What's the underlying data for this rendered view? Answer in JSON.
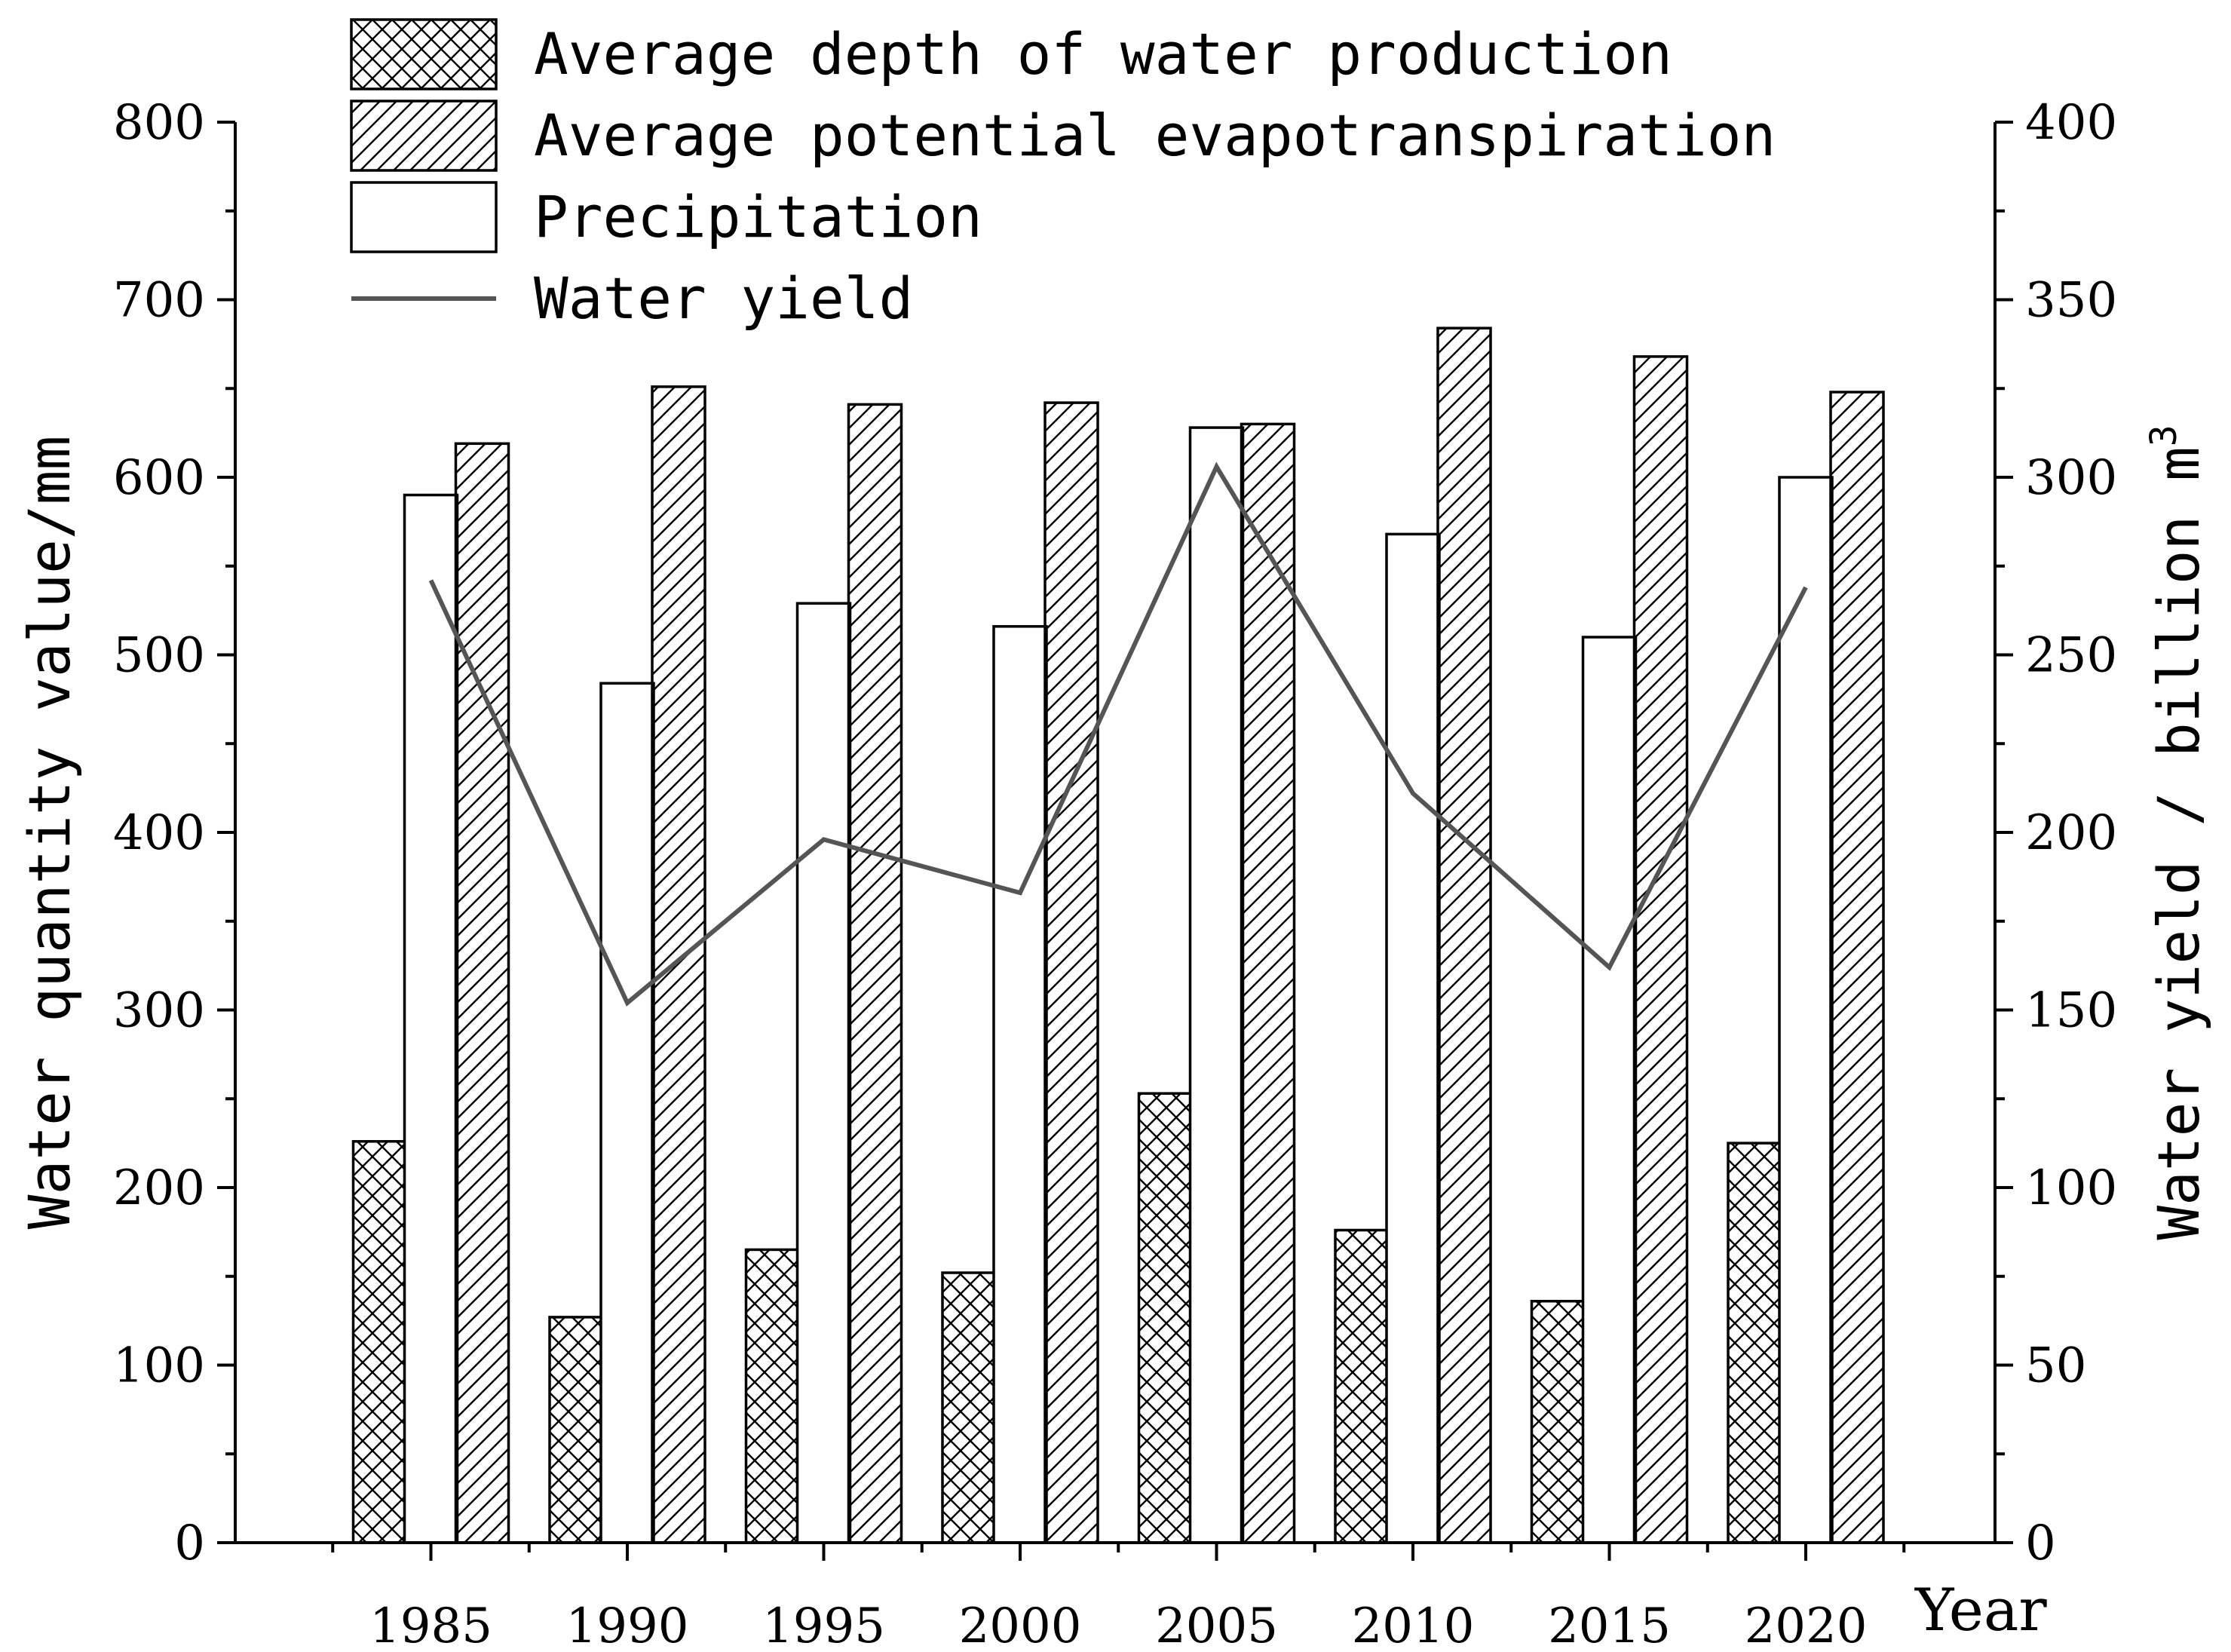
{
  "chart_data": {
    "type": "bar",
    "categories": [
      "1985",
      "1990",
      "1995",
      "2000",
      "2005",
      "2010",
      "2015",
      "2020"
    ],
    "x_unit_label": "Year",
    "series": [
      {
        "name": "Average depth of water production",
        "axis": "left",
        "pattern": "crosshatch",
        "values": [
          226,
          127,
          165,
          152,
          253,
          176,
          136,
          225
        ]
      },
      {
        "name": "Precipitation",
        "axis": "left",
        "pattern": "none",
        "values": [
          590,
          484,
          529,
          516,
          628,
          568,
          510,
          600
        ]
      },
      {
        "name": "Average potential evapotranspiration",
        "axis": "left",
        "pattern": "diagonal",
        "values": [
          619,
          651,
          641,
          642,
          630,
          684,
          668,
          648
        ]
      },
      {
        "name": "Water yield",
        "axis": "right",
        "type": "line",
        "color": "#555555",
        "values": [
          271,
          152,
          198,
          183,
          303,
          211,
          162,
          269
        ]
      }
    ],
    "legend": {
      "position": "top-left",
      "entries": [
        "Average depth of water production",
        "Average potential evapotranspiration",
        "Precipitation",
        "Water yield"
      ]
    },
    "ylabel": "Water quantity value/mm",
    "y2label": "Water yield / billion m",
    "y2label_sup": "3",
    "ylim": [
      0,
      800
    ],
    "yticks": [
      "0",
      "100",
      "200",
      "300",
      "400",
      "500",
      "600",
      "700",
      "800"
    ],
    "y2lim": [
      0,
      400
    ],
    "y2ticks": [
      "0",
      "50",
      "100",
      "150",
      "200",
      "250",
      "300",
      "350",
      "400"
    ],
    "grid": false
  }
}
